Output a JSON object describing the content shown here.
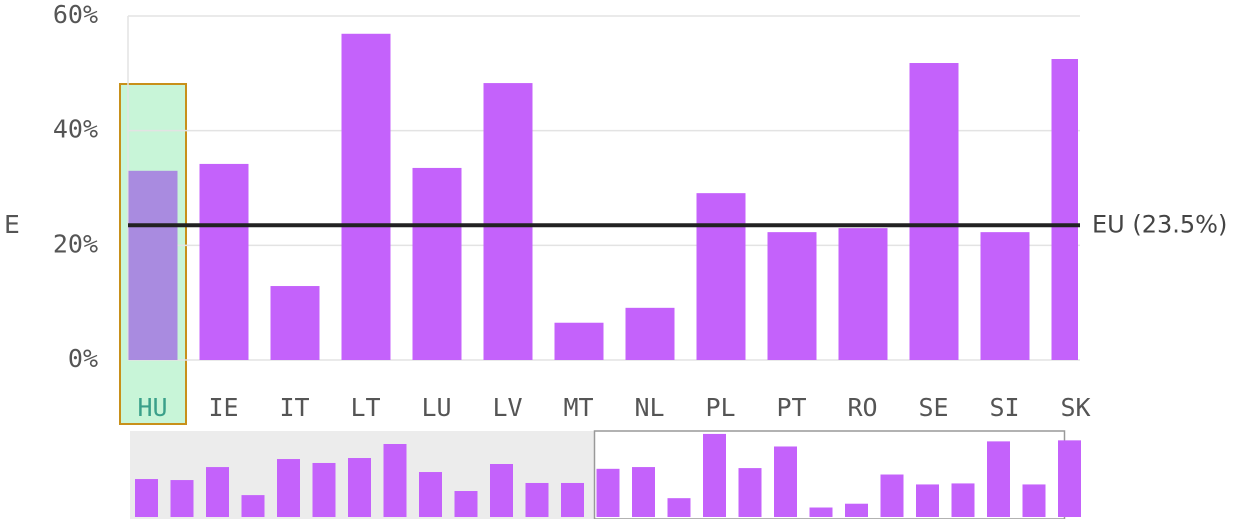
{
  "chart_data": {
    "type": "bar",
    "y_label": "E",
    "categories": [
      "HU",
      "IE",
      "IT",
      "LT",
      "LU",
      "LV",
      "MT",
      "NL",
      "PL",
      "PT",
      "RO",
      "SE",
      "SI",
      "SK"
    ],
    "values": [
      33,
      34.2,
      12.9,
      56.9,
      33.5,
      48.3,
      6.5,
      9.1,
      29.1,
      22.3,
      23,
      51.8,
      22.3,
      52.5
    ],
    "color": "#c462fb",
    "selected_category": "HU",
    "selected_color": "#a98be0",
    "selected_background": "#c8f5d8",
    "selected_border": "#c8901a",
    "ylim": [
      0,
      60
    ],
    "yticks": [
      {
        "value": 0,
        "label": "0%"
      },
      {
        "value": 20,
        "label": "20%"
      },
      {
        "value": 40,
        "label": "40%"
      },
      {
        "value": 60,
        "label": "60%"
      }
    ],
    "grid": true,
    "reference_line": {
      "value": 23.5,
      "label": "EU (23.5%)",
      "color": "#222222"
    },
    "overview_values": [
      26,
      25.3,
      34.2,
      15,
      39.7,
      37,
      40.4,
      50,
      30.8,
      17.8,
      36.3,
      23.3,
      23.3,
      33,
      34.2,
      12.9,
      56.9,
      33.5,
      48.3,
      6.5,
      9.1,
      29.1,
      22.3,
      23,
      51.8,
      22.3,
      52.5
    ]
  }
}
